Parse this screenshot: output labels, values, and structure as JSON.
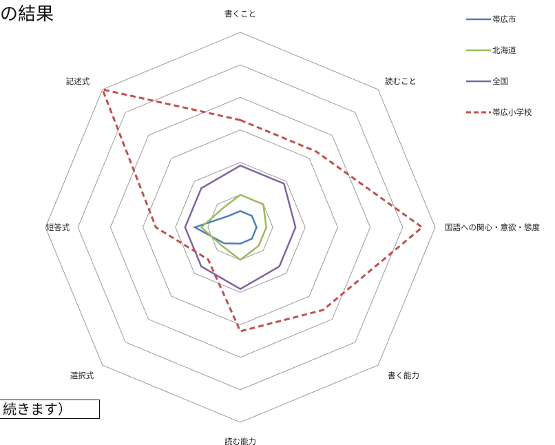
{
  "title_fragment": "の結果",
  "note_fragment": "続きます）",
  "chart_data": {
    "type": "radar",
    "axes": [
      "書くこと",
      "読むこと",
      "国語への関心・意欲・態度",
      "書く能力",
      "読む能力",
      "選択式",
      "短答式",
      "記述式"
    ],
    "rlim": [
      0,
      6
    ],
    "rings": 6,
    "grid": true,
    "legend_position": "right",
    "series": [
      {
        "name": "帯広市",
        "color": "#4a7ebb",
        "dashed": false,
        "values": [
          0.5,
          0.5,
          0.5,
          0.5,
          0.5,
          0.7,
          1.4,
          0.5
        ]
      },
      {
        "name": "北海道",
        "color": "#9bbb59",
        "dashed": false,
        "values": [
          1.0,
          1.0,
          0.8,
          0.8,
          1.0,
          0.8,
          1.2,
          0.8
        ]
      },
      {
        "name": "全国",
        "color": "#8064a2",
        "dashed": false,
        "values": [
          1.9,
          1.9,
          1.7,
          1.7,
          1.9,
          1.7,
          1.7,
          1.7
        ]
      },
      {
        "name": "帯広小学校",
        "color": "#c0504d",
        "dashed": true,
        "values": [
          3.3,
          3.3,
          5.6,
          3.6,
          3.2,
          1.4,
          2.6,
          6.0
        ]
      }
    ]
  }
}
